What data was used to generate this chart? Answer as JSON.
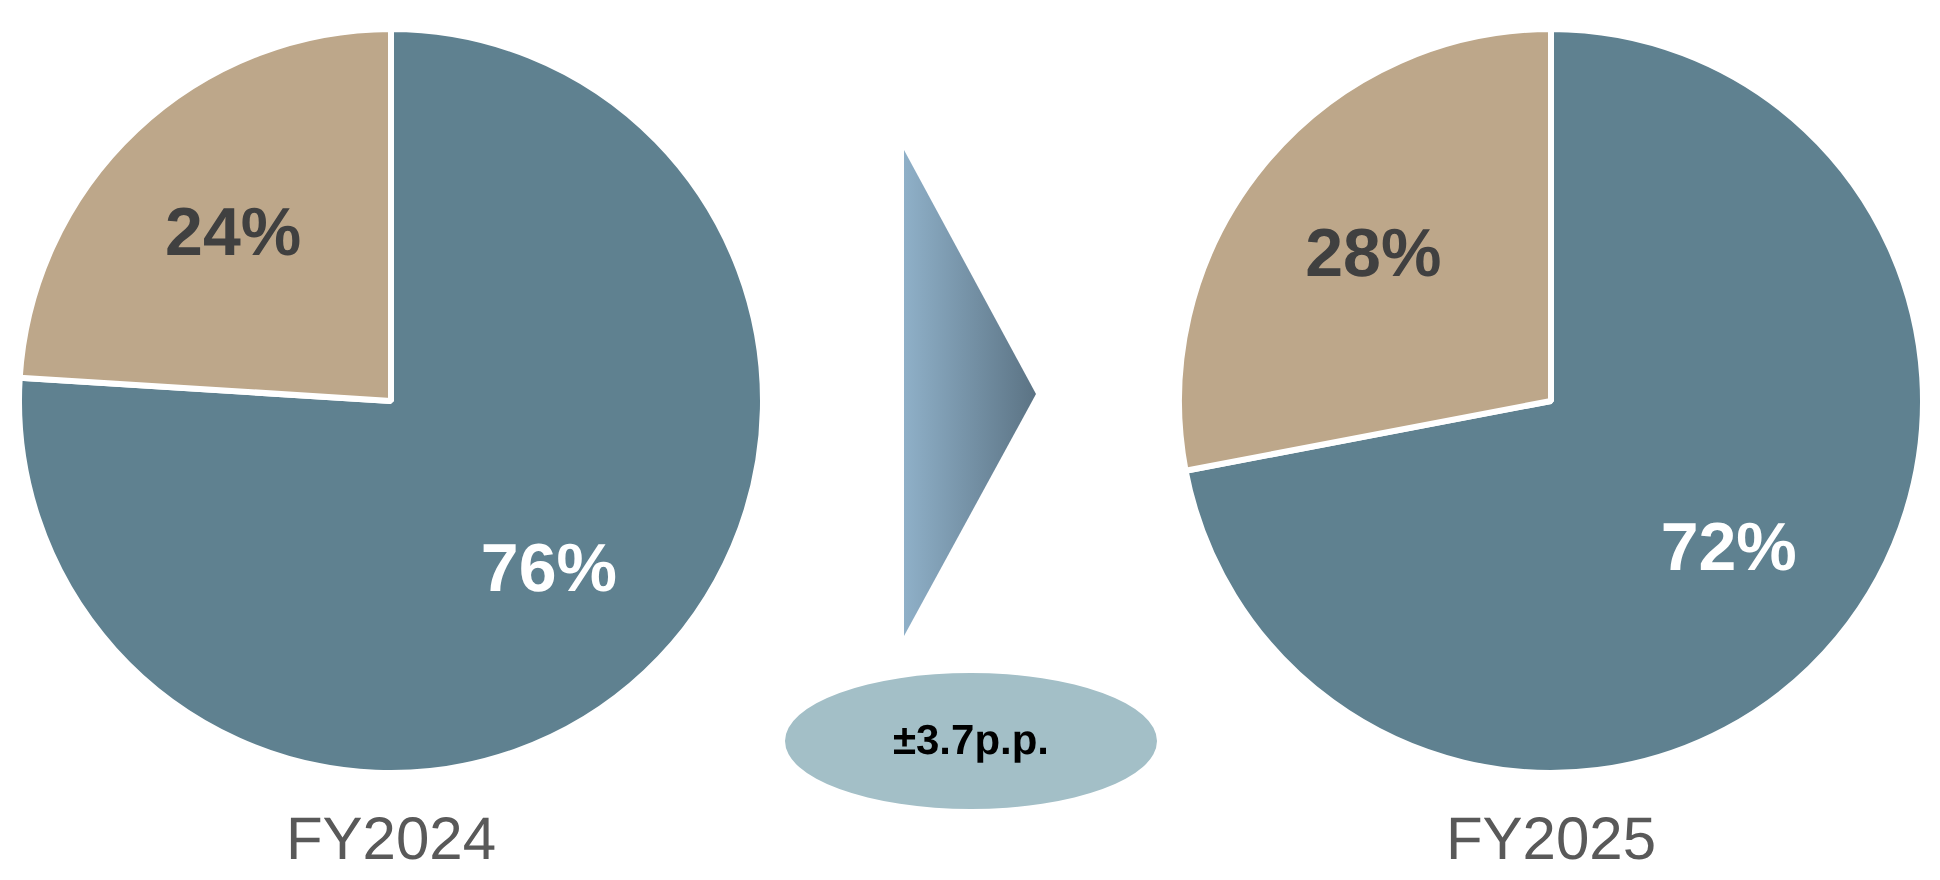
{
  "chart_data": [
    {
      "type": "pie",
      "title": "FY2024",
      "categories": [
        null,
        null
      ],
      "values": [
        76,
        24
      ],
      "colors": [
        "#5f8190",
        "#bda78a"
      ],
      "value_labels": [
        "76%",
        "24%"
      ]
    },
    {
      "type": "other",
      "annotations": [
        "±3.7p.p."
      ]
    },
    {
      "type": "pie",
      "title": "FY2025",
      "categories": [
        null,
        null
      ],
      "values": [
        72,
        28
      ],
      "colors": [
        "#5f8190",
        "#bda78a"
      ],
      "value_labels": [
        "72%",
        "28%"
      ]
    }
  ]
}
